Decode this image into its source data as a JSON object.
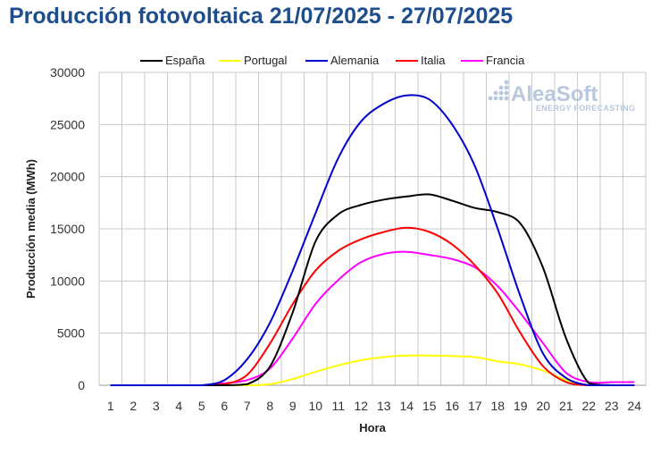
{
  "title": "Producción fotovoltaica 21/07/2025 - 27/07/2025",
  "watermark": {
    "brand": "AleaSoft",
    "tagline": "ENERGY FORECASTING"
  },
  "chart_data": {
    "type": "line",
    "xlabel": "Hora",
    "ylabel": "Producción media (MWh)",
    "categories": [
      1,
      2,
      3,
      4,
      5,
      6,
      7,
      8,
      9,
      10,
      11,
      12,
      13,
      14,
      15,
      16,
      17,
      18,
      19,
      20,
      21,
      22,
      23,
      24
    ],
    "ylim": [
      0,
      30000
    ],
    "yticks": [
      0,
      5000,
      10000,
      15000,
      20000,
      25000,
      30000
    ],
    "grid": true,
    "legend_position": "top",
    "series": [
      {
        "name": "España",
        "color": "#000000",
        "values": [
          0,
          0,
          0,
          0,
          0,
          0,
          100,
          1800,
          7000,
          13800,
          16400,
          17300,
          17800,
          18100,
          18300,
          17700,
          17000,
          16600,
          15500,
          11200,
          4500,
          200,
          0,
          0
        ]
      },
      {
        "name": "Portugal",
        "color": "#ffff00",
        "values": [
          0,
          0,
          0,
          0,
          0,
          0,
          0,
          100,
          600,
          1300,
          1900,
          2400,
          2700,
          2850,
          2850,
          2800,
          2700,
          2300,
          2000,
          1400,
          500,
          0,
          0,
          0
        ]
      },
      {
        "name": "Alemania",
        "color": "#0000cc",
        "values": [
          0,
          0,
          0,
          0,
          0,
          500,
          2500,
          6000,
          11000,
          16500,
          21800,
          25300,
          27000,
          27800,
          27400,
          25000,
          21000,
          15000,
          8500,
          3000,
          700,
          0,
          0,
          0
        ]
      },
      {
        "name": "Italia",
        "color": "#ff0000",
        "values": [
          0,
          0,
          0,
          0,
          0,
          100,
          1000,
          4000,
          7800,
          11000,
          12900,
          14000,
          14700,
          15100,
          14700,
          13500,
          11500,
          8800,
          5000,
          1800,
          300,
          0,
          0,
          0
        ]
      },
      {
        "name": "Francia",
        "color": "#ff00ff",
        "values": [
          0,
          0,
          0,
          0,
          0,
          200,
          500,
          1600,
          4500,
          7800,
          10100,
          11800,
          12600,
          12800,
          12500,
          12100,
          11300,
          9500,
          6900,
          4000,
          1200,
          300,
          300,
          300
        ]
      }
    ]
  }
}
